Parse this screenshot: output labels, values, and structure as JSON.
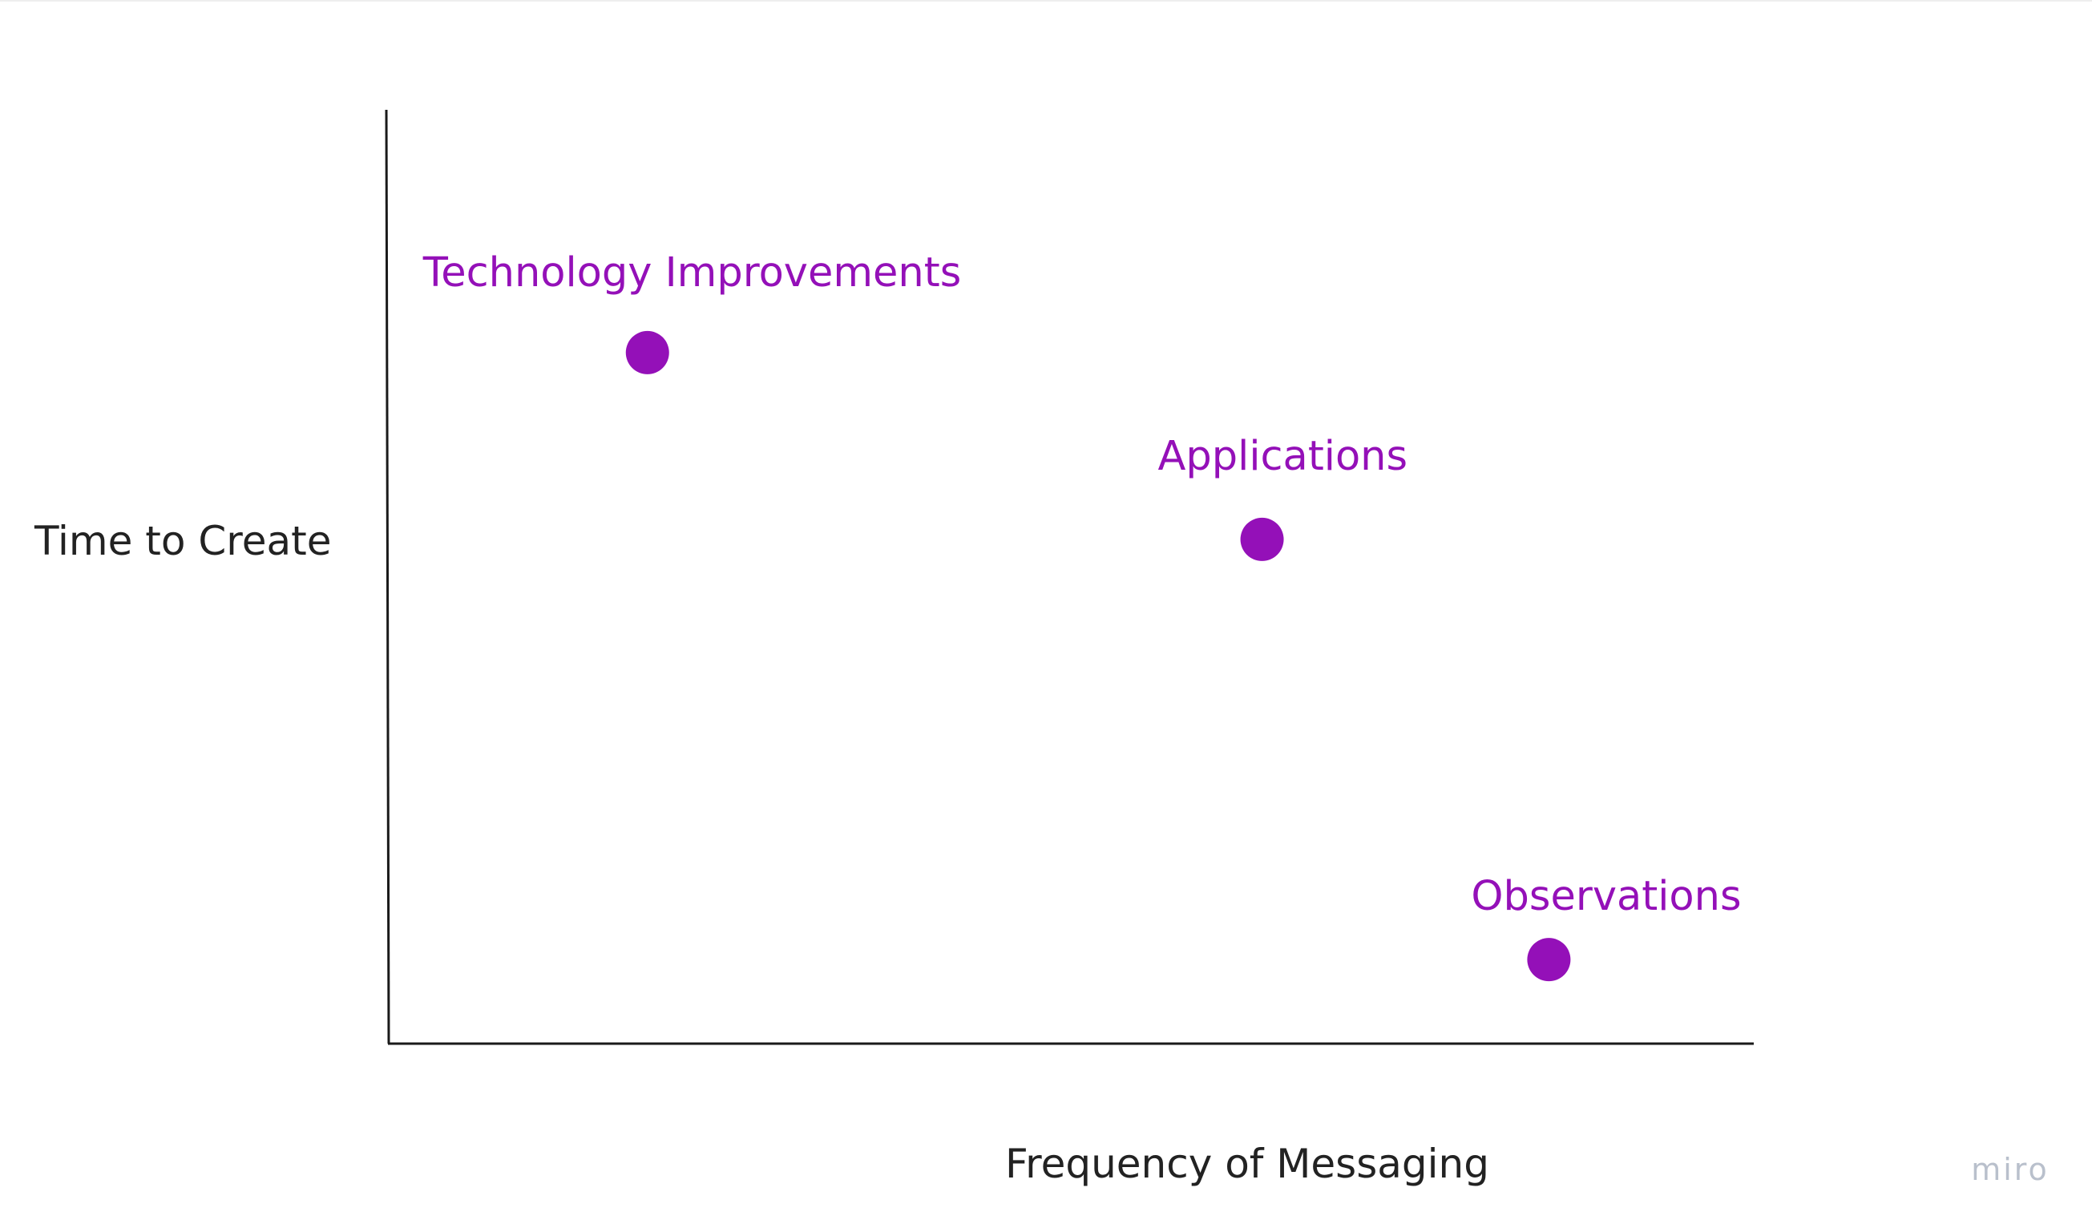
{
  "chart_data": {
    "type": "scatter",
    "title": "",
    "xlabel": "Frequency of Messaging",
    "ylabel": "Time to Create",
    "xlim": [
      0,
      100
    ],
    "ylim": [
      0,
      100
    ],
    "grid": false,
    "legend": "none",
    "point_color": "#9410b8",
    "axis_color": "#1a1a1a",
    "points": [
      {
        "label": "Technology Improvements",
        "x": 19,
        "y": 74
      },
      {
        "label": "Applications",
        "x": 64,
        "y": 54
      },
      {
        "label": "Observations",
        "x": 85,
        "y": 9
      }
    ]
  },
  "watermark": "miro"
}
